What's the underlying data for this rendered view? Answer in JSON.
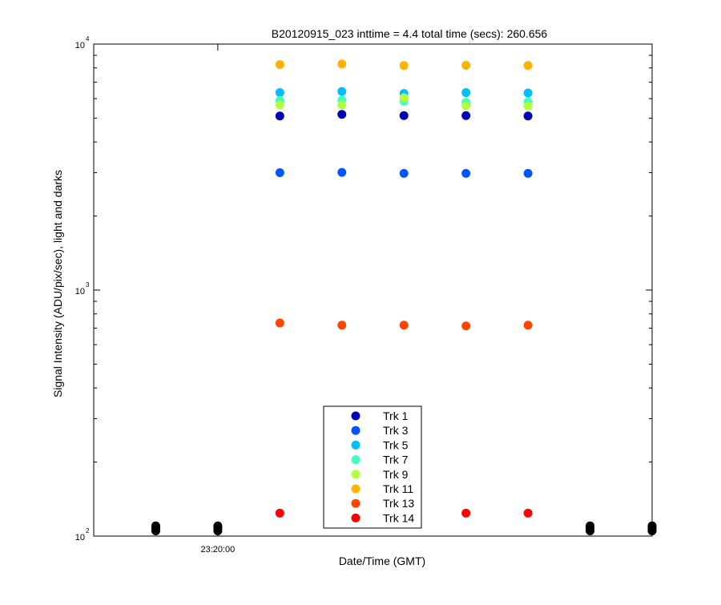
{
  "chart_data": {
    "type": "scatter",
    "title": "B20120915_023 inttime = 4.4 total time (secs): 260.656",
    "xlabel": "Date/Time (GMT)",
    "ylabel": "Signal Intensity (ADU/pix/sec), light and darks",
    "yscale": "log",
    "ylim": [
      100,
      10000
    ],
    "xlim": [
      0,
      9
    ],
    "x_ticks": [
      {
        "x": 2,
        "label": "23:20:00"
      }
    ],
    "y_ticks": [
      {
        "value": 100,
        "base": "10",
        "exp": "2"
      },
      {
        "value": 1000,
        "base": "10",
        "exp": "3"
      },
      {
        "value": 10000,
        "base": "10",
        "exp": "4"
      }
    ],
    "legend_position": "bottom-center",
    "series": [
      {
        "name": "Trk 1",
        "color": "#0000B5",
        "x": [
          3,
          4,
          5,
          6,
          7
        ],
        "values": [
          5100,
          5180,
          5120,
          5120,
          5100
        ]
      },
      {
        "name": "Trk 3",
        "color": "#0055FF",
        "x": [
          3,
          4,
          5,
          6,
          7
        ],
        "values": [
          3000,
          3010,
          2980,
          2980,
          2980
        ]
      },
      {
        "name": "Trk 5",
        "color": "#00BFFF",
        "x": [
          3,
          4,
          5,
          6,
          7
        ],
        "values": [
          6350,
          6420,
          6300,
          6350,
          6330
        ]
      },
      {
        "name": "Trk 7",
        "color": "#40FFC0",
        "x": [
          3,
          4,
          5,
          6,
          7
        ],
        "values": [
          5900,
          5920,
          5850,
          5800,
          5820
        ]
      },
      {
        "name": "Trk 9",
        "color": "#B0FF40",
        "x": [
          3,
          4,
          5,
          6,
          7
        ],
        "values": [
          5650,
          5650,
          6050,
          5620,
          5600
        ]
      },
      {
        "name": "Trk 11",
        "color": "#FFB300",
        "x": [
          3,
          4,
          5,
          6,
          7
        ],
        "values": [
          8250,
          8300,
          8180,
          8200,
          8180
        ]
      },
      {
        "name": "Trk 13",
        "color": "#FF4500",
        "x": [
          3,
          4,
          5,
          6,
          7
        ],
        "values": [
          735,
          720,
          720,
          715,
          720
        ]
      },
      {
        "name": "Trk 14",
        "color": "#FF0000",
        "x": [
          3,
          6,
          7
        ],
        "values": [
          124,
          124,
          124
        ]
      },
      {
        "name": "darks",
        "color": "#000000",
        "legend": false,
        "x": [
          1,
          1,
          1,
          1,
          2,
          2,
          2,
          2,
          8,
          8,
          8,
          8,
          9,
          9,
          9,
          9
        ],
        "values": [
          105,
          107,
          109,
          110,
          105,
          107,
          109,
          110,
          105,
          107,
          109,
          110,
          105,
          107,
          109,
          110
        ]
      }
    ]
  }
}
